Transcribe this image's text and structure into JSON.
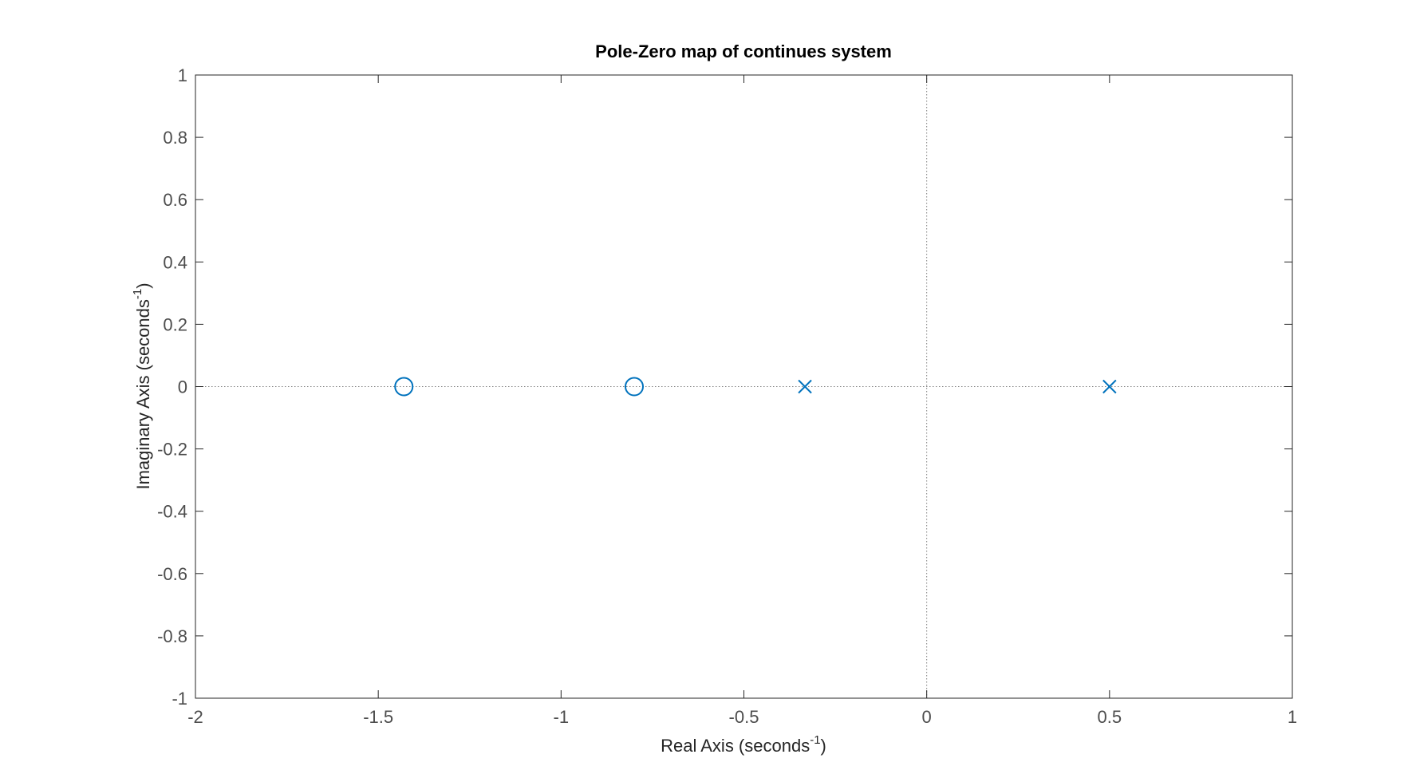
{
  "chart_data": {
    "type": "scatter",
    "title": "Pole-Zero map of continues system",
    "xlabel": {
      "text": "Real Axis (seconds",
      "sup": "-1",
      "suffix": ")"
    },
    "ylabel": {
      "text": "Imaginary Axis (seconds",
      "sup": "-1",
      "suffix": ")"
    },
    "xlim": [
      -2,
      1
    ],
    "ylim": [
      -1,
      1
    ],
    "xticks": [
      -2,
      -1.5,
      -1,
      -0.5,
      0,
      0.5,
      1
    ],
    "xtick_labels": [
      "-2",
      "-1.5",
      "-1",
      "-0.5",
      "0",
      "0.5",
      "1"
    ],
    "yticks": [
      -1,
      -0.8,
      -0.6,
      -0.4,
      -0.2,
      0,
      0.2,
      0.4,
      0.6,
      0.8,
      1
    ],
    "ytick_labels": [
      "-1",
      "-0.8",
      "-0.6",
      "-0.4",
      "-0.2",
      "0",
      "0.2",
      "0.4",
      "0.6",
      "0.8",
      "1"
    ],
    "grid": false,
    "series": [
      {
        "marker": "o",
        "x": [
          -1.43,
          -0.8
        ],
        "y": [
          0,
          0
        ]
      },
      {
        "marker": "x",
        "x": [
          -0.333,
          0.5
        ],
        "y": [
          0,
          0
        ]
      }
    ],
    "colors": {
      "marker": "#0072BD",
      "axis": "#262626",
      "tick_label": "#4d4d4d",
      "reference": "#7f7f7f"
    }
  }
}
